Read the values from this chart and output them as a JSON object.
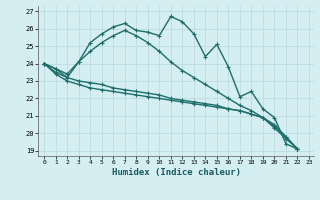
{
  "xlabel": "Humidex (Indice chaleur)",
  "bg_color": "#d4eef2",
  "grid_color": "#b8d8de",
  "line_color": "#1e6e6a",
  "xlim": [
    -0.5,
    23.4
  ],
  "ylim": [
    18.7,
    27.3
  ],
  "yticks": [
    19,
    20,
    21,
    22,
    23,
    24,
    25,
    26,
    27
  ],
  "xticks": [
    0,
    1,
    2,
    3,
    4,
    5,
    6,
    7,
    8,
    9,
    10,
    11,
    12,
    13,
    14,
    15,
    16,
    17,
    18,
    19,
    20,
    21,
    22,
    23
  ],
  "series": [
    [
      24.0,
      23.7,
      23.2,
      24.1,
      25.2,
      25.7,
      26.1,
      26.3,
      25.9,
      25.8,
      25.6,
      26.7,
      26.4,
      25.7,
      24.4,
      25.1,
      23.8,
      22.1,
      22.4,
      21.4,
      20.9,
      19.4,
      19.1
    ],
    [
      24.0,
      23.7,
      23.4,
      24.1,
      24.7,
      25.2,
      25.6,
      25.9,
      25.6,
      25.2,
      24.7,
      24.1,
      23.6,
      23.2,
      22.8,
      22.4,
      22.0,
      21.6,
      21.3,
      20.9,
      20.3,
      19.7,
      19.1
    ],
    [
      24.0,
      23.4,
      23.0,
      22.8,
      22.6,
      22.5,
      22.4,
      22.3,
      22.2,
      22.1,
      22.0,
      21.9,
      21.8,
      21.7,
      21.6,
      21.5,
      21.4,
      21.3,
      21.1,
      20.9,
      20.4,
      19.8,
      19.1
    ],
    [
      24.0,
      23.5,
      23.2,
      23.0,
      22.9,
      22.8,
      22.6,
      22.5,
      22.4,
      22.3,
      22.2,
      22.0,
      21.9,
      21.8,
      21.7,
      21.6,
      21.4,
      21.3,
      21.1,
      20.9,
      20.5,
      19.8,
      19.1
    ]
  ]
}
